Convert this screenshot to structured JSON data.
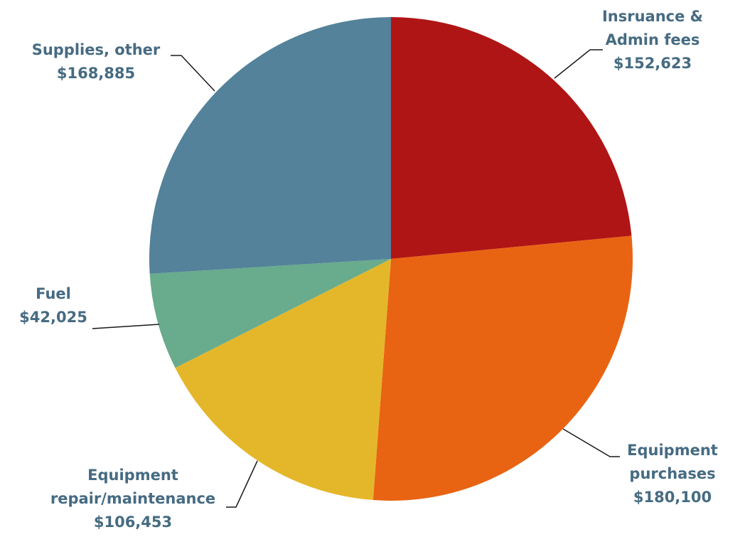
{
  "chart_data": {
    "type": "pie",
    "title": "",
    "start": "12 o'clock",
    "direction": "clockwise",
    "legend": "none",
    "slices": [
      {
        "label_lines": [
          "Insruance &",
          "Admin fees",
          "$152,623"
        ],
        "category": "Insruance & Admin fees",
        "value": 152623,
        "value_label": "$152,623",
        "color": "#b01515"
      },
      {
        "label_lines": [
          "Equipment",
          "purchases",
          "$180,100"
        ],
        "category": "Equipment purchases",
        "value": 180100,
        "value_label": "$180,100",
        "color": "#e86413"
      },
      {
        "label_lines": [
          "Equipment",
          "repair/maintenance",
          "$106,453"
        ],
        "category": "Equipment repair/maintenance",
        "value": 106453,
        "value_label": "$106,453",
        "color": "#e4b72a"
      },
      {
        "label_lines": [
          "Fuel",
          "$42,025"
        ],
        "category": "Fuel",
        "value": 42025,
        "value_label": "$42,025",
        "color": "#69ab8d"
      },
      {
        "label_lines": [
          "Supplies, other",
          "$168,885"
        ],
        "category": "Supplies, other",
        "value": 168885,
        "value_label": "$168,885",
        "color": "#53829a"
      }
    ]
  }
}
